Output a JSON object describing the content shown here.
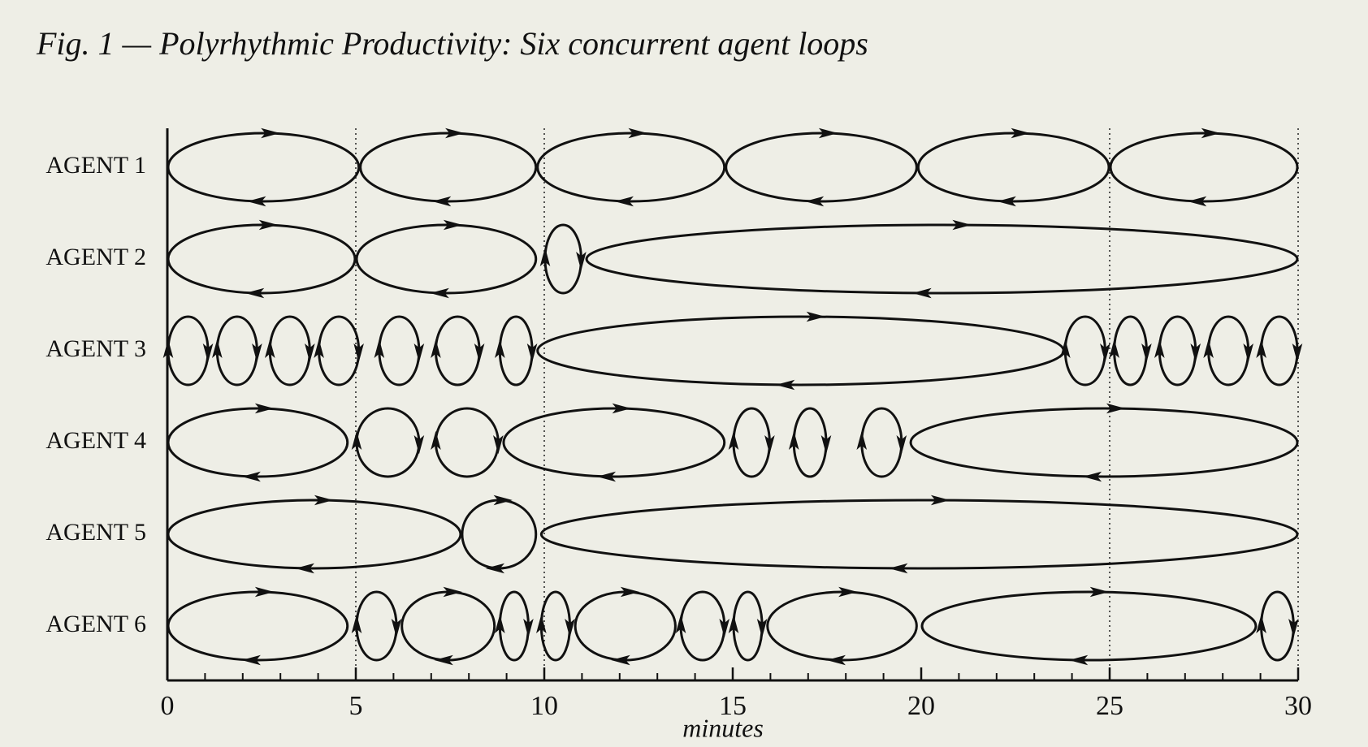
{
  "chart_data": {
    "type": "loops",
    "title": "Fig. 1 — Polyrhythmic Productivity: Six concurrent agent loops",
    "xlabel": "minutes",
    "xlim": [
      0,
      30
    ],
    "xticks": [
      0,
      5,
      10,
      15,
      20,
      25,
      30
    ],
    "xminorticks": [
      1,
      2,
      3,
      4,
      6,
      7,
      8,
      9,
      11,
      12,
      13,
      14,
      16,
      17,
      18,
      19,
      21,
      22,
      23,
      24,
      26,
      27,
      28,
      29
    ],
    "guides": [
      5,
      10,
      25,
      30
    ],
    "color": "#111111",
    "series": [
      {
        "name": "AGENT 1",
        "loops": [
          [
            0,
            5.1
          ],
          [
            5.1,
            9.8
          ],
          [
            9.8,
            14.8
          ],
          [
            14.8,
            19.9
          ],
          [
            19.9,
            25
          ],
          [
            25,
            30
          ]
        ]
      },
      {
        "name": "AGENT 2",
        "loops": [
          [
            0,
            5
          ],
          [
            5,
            9.8
          ],
          [
            10,
            11
          ],
          [
            11.1,
            30
          ]
        ]
      },
      {
        "name": "AGENT 3",
        "loops": [
          [
            0,
            1.1
          ],
          [
            1.3,
            2.4
          ],
          [
            2.7,
            3.8
          ],
          [
            4,
            5.1
          ],
          [
            5.6,
            6.7
          ],
          [
            7.1,
            8.3
          ],
          [
            8.8,
            9.7
          ],
          [
            9.8,
            23.8
          ],
          [
            23.8,
            24.9
          ],
          [
            25.1,
            26
          ],
          [
            26.3,
            27.3
          ],
          [
            27.6,
            28.7
          ],
          [
            29,
            30
          ]
        ]
      },
      {
        "name": "AGENT 4",
        "loops": [
          [
            0,
            4.8
          ],
          [
            5,
            6.7
          ],
          [
            7.1,
            8.8
          ],
          [
            8.9,
            14.8
          ],
          [
            15,
            16
          ],
          [
            16.6,
            17.5
          ],
          [
            18.4,
            19.5
          ],
          [
            19.7,
            30
          ]
        ]
      },
      {
        "name": "AGENT 5",
        "loops": [
          [
            0,
            7.8
          ],
          [
            7.8,
            9.8
          ],
          [
            9.9,
            30
          ]
        ]
      },
      {
        "name": "AGENT 6",
        "loops": [
          [
            0,
            4.8
          ],
          [
            5,
            6.1
          ],
          [
            6.2,
            8.7
          ],
          [
            8.8,
            9.6
          ],
          [
            9.9,
            10.7
          ],
          [
            10.8,
            13.5
          ],
          [
            13.6,
            14.8
          ],
          [
            15,
            15.8
          ],
          [
            15.9,
            19.9
          ],
          [
            20,
            28.9
          ],
          [
            29,
            29.9
          ]
        ]
      }
    ]
  }
}
